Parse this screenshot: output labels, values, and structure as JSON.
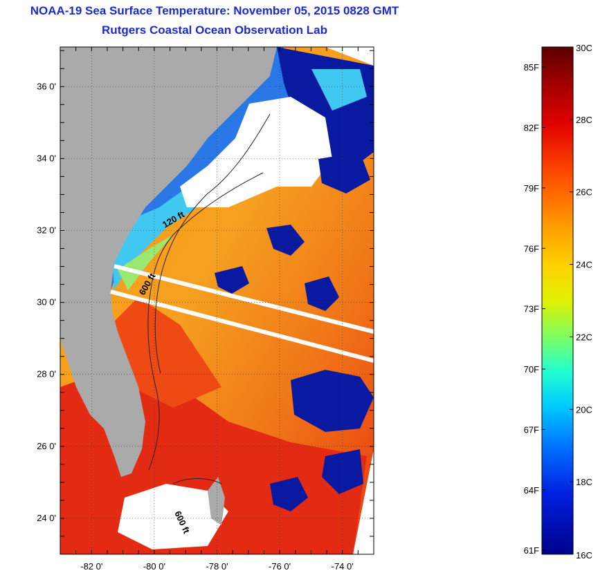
{
  "header": {
    "title": "NOAA-19 Sea Surface Temperature:  November 05, 2015 0828 GMT",
    "subtitle": "Rutgers Coastal Ocean Observation Lab"
  },
  "map": {
    "lon_range": [
      -83.0,
      -73.0
    ],
    "lat_range": [
      23.0,
      37.1
    ],
    "lat_ticks": [
      {
        "value": 36,
        "label": "36 0'"
      },
      {
        "value": 34,
        "label": "34 0'"
      },
      {
        "value": 32,
        "label": "32 0'"
      },
      {
        "value": 30,
        "label": "30 0'"
      },
      {
        "value": 28,
        "label": "28 0'"
      },
      {
        "value": 26,
        "label": "26 0'"
      },
      {
        "value": 24,
        "label": "24 0'"
      }
    ],
    "lon_ticks": [
      {
        "value": -82,
        "label": "-82 0'"
      },
      {
        "value": -80,
        "label": "-80 0'"
      },
      {
        "value": -78,
        "label": "-78 0'"
      },
      {
        "value": -76,
        "label": "-76 0'"
      },
      {
        "value": -74,
        "label": "-74 0'"
      }
    ],
    "contour_labels": [
      "120 ft",
      "600 ft",
      "600 ft"
    ],
    "colors": {
      "land": "#aaaaaa",
      "cloud": "#ffffff",
      "cold": "#0a1aa0",
      "warm": "#f07010",
      "hot": "#e01a10"
    }
  },
  "colorbar": {
    "min_c": 16,
    "max_c": 30,
    "celsius_labels": [
      {
        "value": 30,
        "label": "30C"
      },
      {
        "value": 28,
        "label": "28C"
      },
      {
        "value": 26,
        "label": "26C"
      },
      {
        "value": 24,
        "label": "24C"
      },
      {
        "value": 22,
        "label": "22C"
      },
      {
        "value": 20,
        "label": "20C"
      },
      {
        "value": 18,
        "label": "18C"
      },
      {
        "value": 16,
        "label": "16C"
      }
    ],
    "fahrenheit_labels": [
      {
        "value": 85,
        "label": "85F"
      },
      {
        "value": 82,
        "label": "82F"
      },
      {
        "value": 79,
        "label": "79F"
      },
      {
        "value": 76,
        "label": "76F"
      },
      {
        "value": 73,
        "label": "73F"
      },
      {
        "value": 70,
        "label": "70F"
      },
      {
        "value": 67,
        "label": "67F"
      },
      {
        "value": 64,
        "label": "64F"
      },
      {
        "value": 61,
        "label": "61F"
      }
    ]
  }
}
